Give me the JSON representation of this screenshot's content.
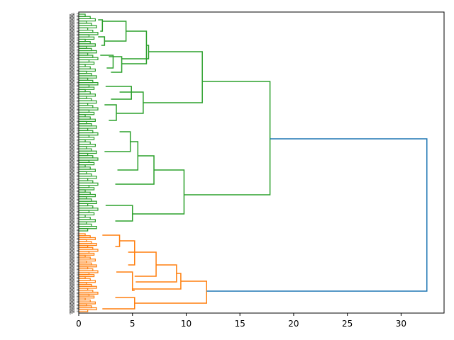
{
  "chart_data": {
    "type": "dendrogram",
    "orientation": "left",
    "title": "",
    "xlabel": "",
    "ylabel": "",
    "xlim": [
      0,
      34
    ],
    "xticks": [
      0,
      5,
      10,
      15,
      20,
      25,
      30
    ],
    "xtick_labels": [
      "0",
      "5",
      "10",
      "15",
      "20",
      "25",
      "30"
    ],
    "grid": false,
    "leaf_count": 200,
    "leaf_label_text": "000",
    "colors": {
      "upper_cluster": "#2ca02c",
      "lower_cluster": "#ff7f0e",
      "above_threshold": "#1f77b4"
    },
    "links": [
      {
        "cluster": "root",
        "lo": 0.0,
        "hi": 1.0,
        "dist": 32.4,
        "dlo": 17.8,
        "dhi": 11.9
      },
      {
        "cluster": "upper",
        "lo": 0.0,
        "hi": 1.0,
        "dist": 17.8,
        "dlo": 11.5,
        "dhi": 9.8
      },
      {
        "cluster": "upper",
        "lo": 0.0,
        "hi": 1.0,
        "dist": 11.5,
        "dlo": 6.5,
        "dhi": 6.0
      },
      {
        "cluster": "upper",
        "lo": 0.0,
        "hi": 1.0,
        "dist": 6.5,
        "dlo": 6.3,
        "dhi": 4.0
      },
      {
        "cluster": "upper",
        "lo": 0.0,
        "hi": 1.0,
        "dist": 6.3,
        "dlo": 2.5,
        "dhi": 4.4
      },
      {
        "cluster": "upper",
        "lo": 0.0,
        "hi": 1.0,
        "dist": 4.4,
        "dlo": 2.2,
        "dhi": 2.4
      },
      {
        "cluster": "upper",
        "lo": 0.0,
        "hi": 1.0,
        "dist": 4.0,
        "dlo": 3.2,
        "dhi": 3.0
      },
      {
        "cluster": "upper",
        "lo": 0.0,
        "hi": 1.0,
        "dist": 6.0,
        "dlo": 4.9,
        "dhi": 3.5
      },
      {
        "cluster": "upper",
        "lo": 0.0,
        "hi": 1.0,
        "dist": 4.9,
        "dlo": 3.8,
        "dhi": 2.4
      },
      {
        "cluster": "upper",
        "lo": 0.0,
        "hi": 1.0,
        "dist": 3.5,
        "dlo": 3.2,
        "dhi": 2.2
      },
      {
        "cluster": "upper",
        "lo": 0.0,
        "hi": 1.0,
        "dist": 9.8,
        "dlo": 7.0,
        "dhi": 5.0
      },
      {
        "cluster": "upper",
        "lo": 0.0,
        "hi": 1.0,
        "dist": 7.0,
        "dlo": 5.5,
        "dhi": 3.4
      },
      {
        "cluster": "upper",
        "lo": 0.0,
        "hi": 1.0,
        "dist": 5.5,
        "dlo": 4.8,
        "dhi": 3.6
      },
      {
        "cluster": "upper",
        "lo": 0.0,
        "hi": 1.0,
        "dist": 4.8,
        "dlo": 4.0,
        "dhi": 3.0
      },
      {
        "cluster": "upper",
        "lo": 0.0,
        "hi": 1.0,
        "dist": 5.0,
        "dlo": 2.5,
        "dhi": 3.4
      },
      {
        "cluster": "lower",
        "lo": 0.0,
        "hi": 1.0,
        "dist": 11.9,
        "dlo": 9.5,
        "dhi": 5.2
      },
      {
        "cluster": "lower",
        "lo": 0.0,
        "hi": 1.0,
        "dist": 9.5,
        "dlo": 9.1,
        "dhi": 5.2
      },
      {
        "cluster": "lower",
        "lo": 0.0,
        "hi": 1.0,
        "dist": 9.1,
        "dlo": 7.2,
        "dhi": 5.3
      },
      {
        "cluster": "lower",
        "lo": 0.0,
        "hi": 1.0,
        "dist": 7.2,
        "dlo": 5.2,
        "dhi": 4.6
      },
      {
        "cluster": "lower",
        "lo": 0.0,
        "hi": 1.0,
        "dist": 5.3,
        "dlo": 3.5,
        "dhi": 5.2
      },
      {
        "cluster": "lower",
        "lo": 0.0,
        "hi": 1.0,
        "dist": 5.2,
        "dlo": 3.4,
        "dhi": 4.6
      }
    ]
  }
}
